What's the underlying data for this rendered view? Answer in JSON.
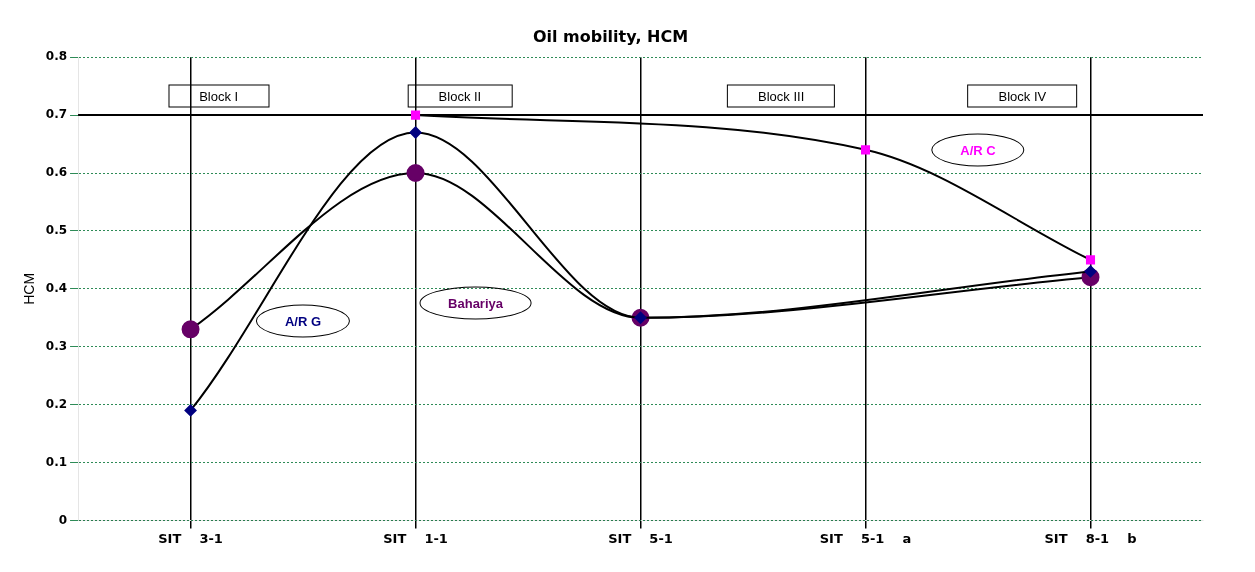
{
  "chart_data": {
    "type": "line",
    "title": "Oil mobility, HCM",
    "ylabel": "HCM",
    "categories": [
      "SIT    3-1",
      "SIT    1-1",
      "SIT    5-1",
      "SIT    5-1    a",
      "SIT    8-1    b"
    ],
    "series": [
      {
        "name": "A/R C",
        "color": "#ff00ff",
        "marker": "square",
        "values": [
          null,
          0.7,
          null,
          0.64,
          0.45
        ]
      },
      {
        "name": "A/R G",
        "color": "#000080",
        "marker": "diamond",
        "values": [
          0.19,
          0.67,
          0.35,
          null,
          0.43
        ]
      },
      {
        "name": "Bahariya",
        "color": "#660066",
        "marker": "circle",
        "values": [
          0.33,
          0.6,
          0.35,
          null,
          0.42
        ]
      }
    ],
    "ylim": [
      0,
      0.8
    ],
    "yticks": [
      0,
      0.1,
      0.2,
      0.3,
      0.4,
      0.5,
      0.6,
      0.7,
      0.8
    ],
    "ref_lines": [
      {
        "axis": "y",
        "value": 0.7,
        "color": "#000000"
      }
    ],
    "annotations": [
      "Block I",
      "Block II",
      "Block III",
      "Block IV"
    ],
    "grid": true,
    "legend": false
  }
}
